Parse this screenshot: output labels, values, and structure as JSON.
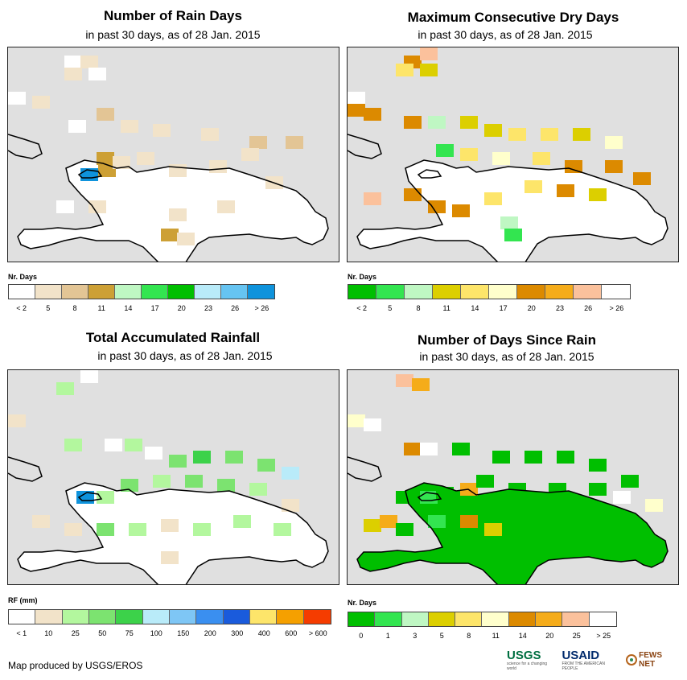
{
  "panels": [
    {
      "title": "Number of Rain Days",
      "subtitle": "in past 30 days, as of 28 Jan. 2015",
      "legend_label": "Nr. Days",
      "legend_colors": [
        "#ffffff",
        "#f2e3c9",
        "#e3c595",
        "#cda035",
        "#bff7c3",
        "#33e550",
        "#00bf00",
        "#b9ebf9",
        "#66c4f2",
        "#0f93dc"
      ],
      "legend_ticks": [
        "< 2",
        "5",
        "8",
        "11",
        "14",
        "17",
        "20",
        "23",
        "26",
        "> 26"
      ]
    },
    {
      "title": "Maximum Consecutive Dry Days",
      "subtitle": "in past 30 days, as of 28 Jan. 2015",
      "legend_label": "Nr. Days",
      "legend_colors": [
        "#00bf00",
        "#33e550",
        "#bff7c3",
        "#dccf00",
        "#fde56a",
        "#ffffcc",
        "#dc8a00",
        "#f5ac1a",
        "#fbc19c",
        "#ffffff"
      ],
      "legend_ticks": [
        "< 2",
        "5",
        "8",
        "11",
        "14",
        "17",
        "20",
        "23",
        "26",
        "> 26"
      ]
    },
    {
      "title": "Total Accumulated Rainfall",
      "subtitle": "in past 30 days, as of 28 Jan. 2015",
      "legend_label": "RF (mm)",
      "legend_colors": [
        "#ffffff",
        "#f2e3c9",
        "#b3f79e",
        "#7ce370",
        "#3cd24a",
        "#b9ebf9",
        "#7ec6f5",
        "#3a8ff0",
        "#1a5bdc",
        "#fde56a",
        "#f5a000",
        "#f53c00"
      ],
      "legend_ticks": [
        "< 1",
        "10",
        "25",
        "50",
        "75",
        "100",
        "150",
        "200",
        "300",
        "400",
        "600",
        "> 600"
      ]
    },
    {
      "title": "Number of Days Since Rain",
      "subtitle": "in past 30 days, as of 28 Jan. 2015",
      "legend_label": "Nr. Days",
      "legend_colors": [
        "#00bf00",
        "#33e550",
        "#bff7c3",
        "#dccf00",
        "#fde56a",
        "#ffffcc",
        "#dc8a00",
        "#f5ac1a",
        "#fbc19c",
        "#ffffff"
      ],
      "legend_ticks": [
        "0",
        "1",
        "3",
        "5",
        "8",
        "11",
        "14",
        "20",
        "25",
        "> 25"
      ]
    }
  ],
  "footer": {
    "credit": "Map produced by USGS/EROS",
    "logo_usgs": "USGS",
    "logo_usgs_tagline": "science for a changing world",
    "logo_usaid": "USAID",
    "logo_usaid_tagline": "FROM THE AMERICAN PEOPLE",
    "logo_fewsnet": "FEWS NET"
  }
}
